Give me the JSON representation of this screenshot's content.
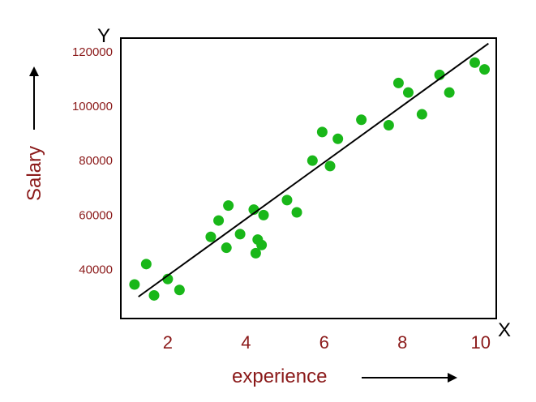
{
  "colors": {
    "text": "#8b1a1a",
    "points": "#19b719",
    "line": "#000000",
    "frame": "#000000",
    "arrow": "#000000"
  },
  "chart_data": {
    "type": "scatter",
    "title": "",
    "xlabel": "experience",
    "ylabel": "Salary",
    "x_axis_letter": "X",
    "y_axis_letter": "Y",
    "xlim": [
      0.8,
      10.4
    ],
    "ylim": [
      22000,
      125000
    ],
    "x_ticks": [
      2,
      4,
      6,
      8,
      10
    ],
    "y_ticks": [
      40000,
      60000,
      80000,
      100000,
      120000
    ],
    "y_tick_labels": [
      "40000",
      "60000",
      "80000",
      "100000",
      "120000"
    ],
    "grid": false,
    "legend": "none",
    "points": [
      {
        "x": 1.15,
        "y": 34500
      },
      {
        "x": 1.45,
        "y": 42000
      },
      {
        "x": 1.65,
        "y": 30500
      },
      {
        "x": 2.0,
        "y": 36500
      },
      {
        "x": 2.3,
        "y": 32500
      },
      {
        "x": 3.1,
        "y": 52000
      },
      {
        "x": 3.3,
        "y": 58000
      },
      {
        "x": 3.5,
        "y": 48000
      },
      {
        "x": 3.55,
        "y": 63500
      },
      {
        "x": 3.85,
        "y": 53000
      },
      {
        "x": 4.2,
        "y": 62000
      },
      {
        "x": 4.25,
        "y": 46000
      },
      {
        "x": 4.3,
        "y": 51000
      },
      {
        "x": 4.4,
        "y": 49000
      },
      {
        "x": 4.45,
        "y": 60000
      },
      {
        "x": 5.05,
        "y": 65500
      },
      {
        "x": 5.3,
        "y": 61000
      },
      {
        "x": 5.7,
        "y": 80000
      },
      {
        "x": 5.95,
        "y": 90500
      },
      {
        "x": 6.15,
        "y": 78000
      },
      {
        "x": 6.35,
        "y": 88000
      },
      {
        "x": 6.95,
        "y": 95000
      },
      {
        "x": 7.65,
        "y": 93000
      },
      {
        "x": 7.9,
        "y": 108500
      },
      {
        "x": 8.15,
        "y": 105000
      },
      {
        "x": 8.5,
        "y": 97000
      },
      {
        "x": 8.95,
        "y": 111500
      },
      {
        "x": 9.2,
        "y": 105000
      },
      {
        "x": 9.85,
        "y": 116000
      },
      {
        "x": 10.1,
        "y": 113500
      }
    ],
    "trend_line": {
      "start": {
        "x": 1.25,
        "y": 30000
      },
      "end": {
        "x": 10.2,
        "y": 123000
      }
    }
  }
}
